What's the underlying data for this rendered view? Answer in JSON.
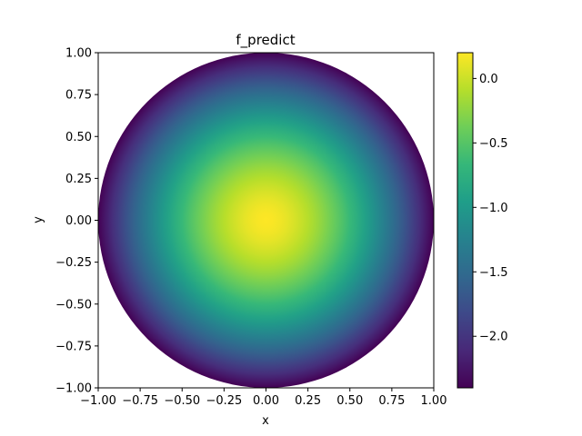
{
  "chart_data": {
    "type": "heatmap",
    "title": "f_predict",
    "xlabel": "x",
    "ylabel": "y",
    "xlim": [
      -1.0,
      1.0
    ],
    "ylim": [
      -1.0,
      1.0
    ],
    "x_ticks": [
      -1.0,
      -0.75,
      -0.5,
      -0.25,
      0.0,
      0.25,
      0.5,
      0.75,
      1.0
    ],
    "x_tick_labels": [
      "−1.00",
      "−0.75",
      "−0.50",
      "−0.25",
      "0.00",
      "0.25",
      "0.50",
      "0.75",
      "1.00"
    ],
    "y_ticks": [
      -1.0,
      -0.75,
      -0.5,
      -0.25,
      0.0,
      0.25,
      0.5,
      0.75,
      1.0
    ],
    "y_tick_labels": [
      "−1.00",
      "−0.75",
      "−0.50",
      "−0.25",
      "0.00",
      "0.25",
      "0.50",
      "0.75",
      "1.00"
    ],
    "domain": "unit disk x² + y² ≤ 1",
    "field": {
      "peak_center": [
        0.0,
        0.0
      ],
      "value_at_center": 0.2,
      "value_at_boundary": -2.4,
      "profile": "radially decreasing"
    },
    "colorbar": {
      "colormap": "viridis",
      "vmin": -2.4,
      "vmax": 0.2,
      "ticks": [
        0.0,
        -0.5,
        -1.0,
        -1.5,
        -2.0
      ],
      "tick_labels": [
        "0.0",
        "−0.5",
        "−1.0",
        "−1.5",
        "−2.0"
      ],
      "colors": [
        "#440154",
        "#482878",
        "#3e4989",
        "#31688e",
        "#26828e",
        "#1f9e89",
        "#35b779",
        "#6ece58",
        "#b5de2b",
        "#fde725"
      ]
    },
    "grid": false
  }
}
